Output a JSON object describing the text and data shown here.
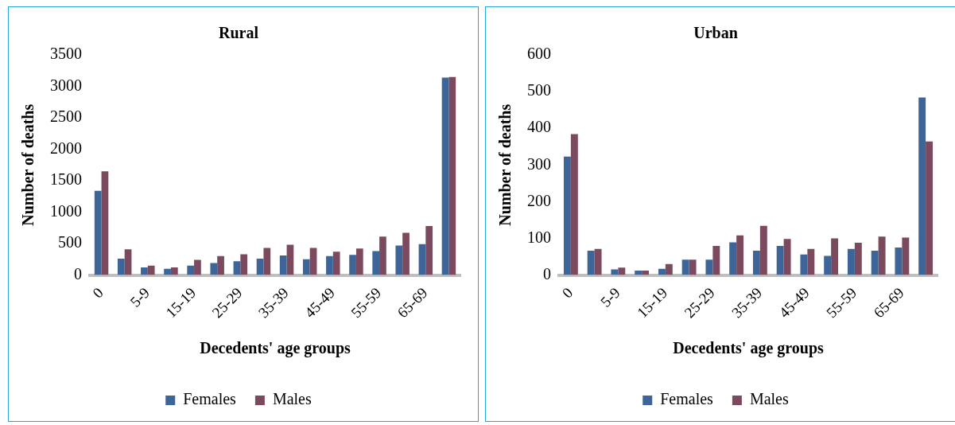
{
  "chart_data": [
    {
      "type": "bar",
      "title": "Rural",
      "xlabel": "Decedents' age groups",
      "ylabel": "Number of deaths",
      "categories": [
        "0",
        null,
        "5-9",
        null,
        "15-19",
        null,
        "25-29",
        null,
        "35-39",
        null,
        "45-49",
        null,
        "55-59",
        null,
        "65-69",
        null
      ],
      "ylim": [
        0,
        3500
      ],
      "yticks": [
        0,
        500,
        1000,
        1500,
        2000,
        2500,
        3000,
        3500
      ],
      "legend": "bottom",
      "series": [
        {
          "name": "Females",
          "color": "#3d6598",
          "values": [
            1340,
            260,
            120,
            100,
            150,
            190,
            220,
            260,
            310,
            250,
            300,
            320,
            380,
            470,
            490,
            3140
          ]
        },
        {
          "name": "Males",
          "color": "#7b4a5e",
          "values": [
            1650,
            410,
            150,
            120,
            240,
            300,
            330,
            430,
            480,
            430,
            370,
            420,
            610,
            670,
            780,
            3150
          ]
        }
      ]
    },
    {
      "type": "bar",
      "title": "Urban",
      "xlabel": "Decedents' age groups",
      "ylabel": "Number of deaths",
      "categories": [
        "0",
        null,
        "5-9",
        null,
        "15-19",
        null,
        "25-29",
        null,
        "35-39",
        null,
        "45-49",
        null,
        "55-59",
        null,
        "65-69",
        null
      ],
      "ylim": [
        0,
        600
      ],
      "yticks": [
        0,
        100,
        200,
        300,
        400,
        500,
        600
      ],
      "legend": "bottom",
      "series": [
        {
          "name": "Females",
          "color": "#3d6598",
          "values": [
            323,
            66,
            15,
            12,
            17,
            42,
            42,
            89,
            66,
            79,
            56,
            52,
            71,
            66,
            75,
            484
          ]
        },
        {
          "name": "Males",
          "color": "#7b4a5e",
          "values": [
            384,
            71,
            20,
            12,
            30,
            42,
            79,
            108,
            134,
            98,
            71,
            100,
            88,
            105,
            102,
            364
          ]
        }
      ]
    }
  ]
}
